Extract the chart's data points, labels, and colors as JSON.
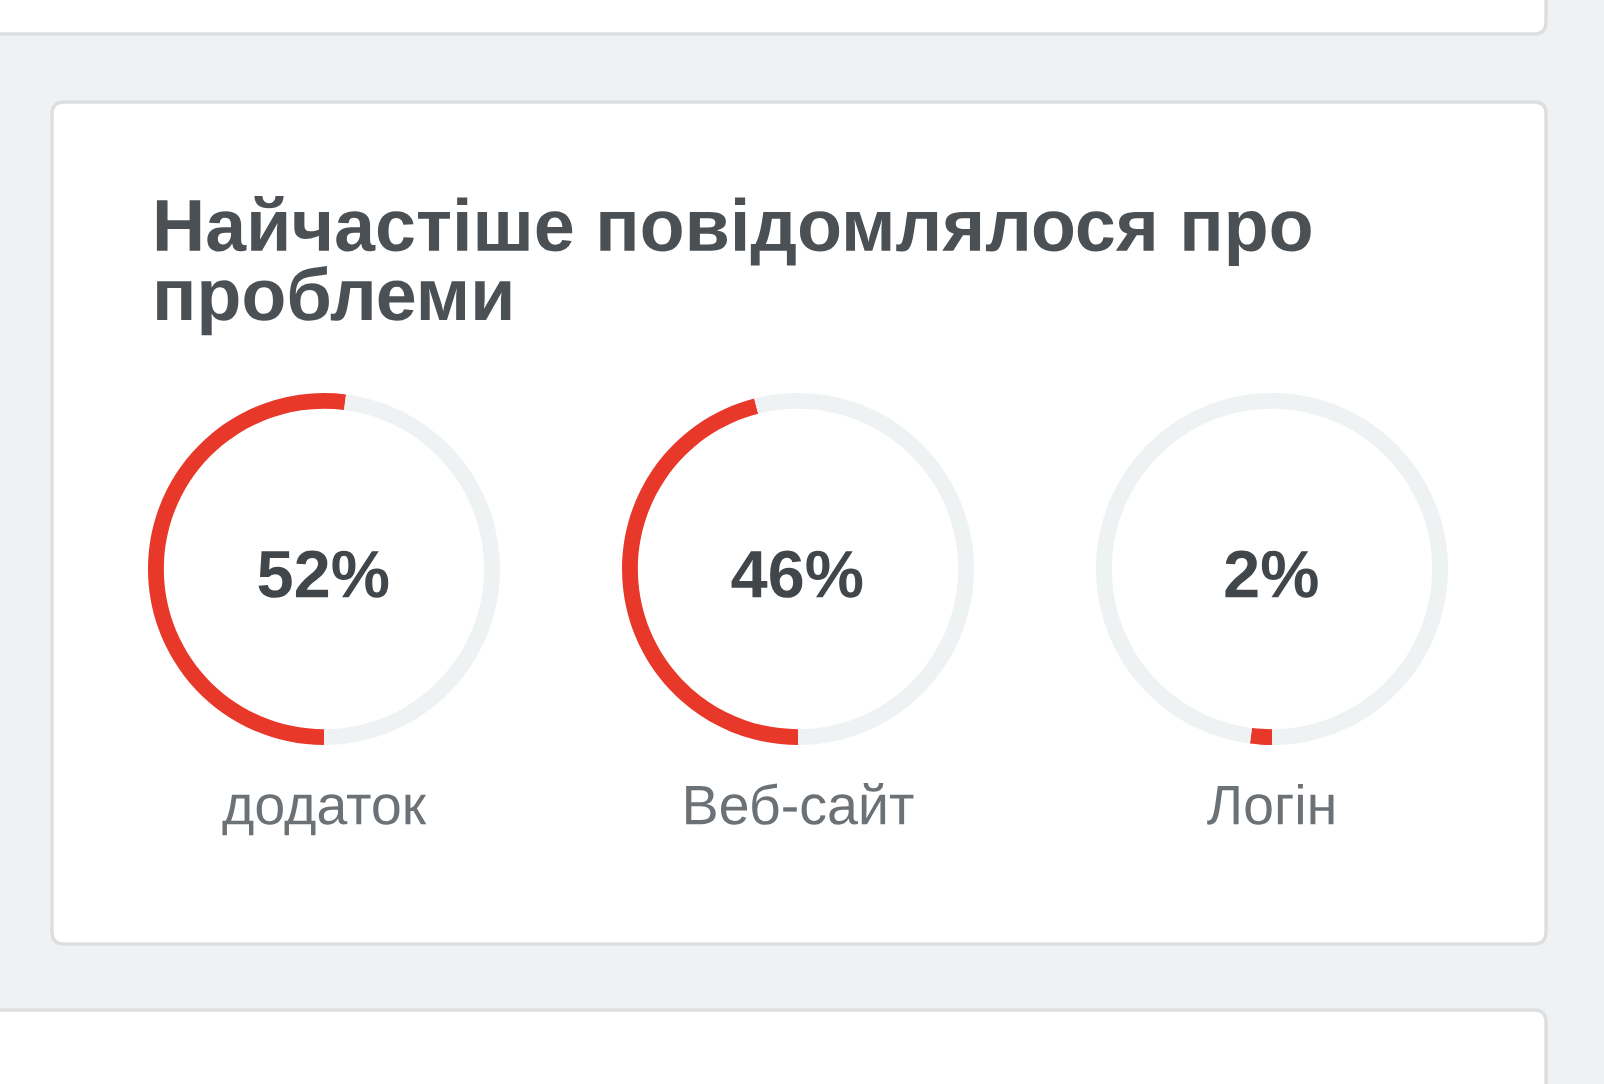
{
  "chart_data": [
    {
      "type": "donut",
      "title": "Найчастіше повідомлялося про проблеми",
      "categories": [
        "додаток",
        null
      ],
      "values": [
        52,
        48
      ],
      "colors": [
        "#e8382a",
        "#eff2f3"
      ],
      "value_labels": [
        "52%",
        null
      ]
    },
    {
      "type": "donut",
      "categories": [
        "Веб-сайт",
        null
      ],
      "values": [
        46,
        54
      ],
      "colors": [
        "#e8382a",
        "#eff2f3"
      ],
      "value_labels": [
        "46%",
        null
      ]
    },
    {
      "type": "donut",
      "categories": [
        "Логін",
        null
      ],
      "values": [
        2,
        98
      ],
      "colors": [
        "#e8382a",
        "#eff2f3"
      ],
      "value_labels": [
        "2%",
        null
      ]
    }
  ]
}
